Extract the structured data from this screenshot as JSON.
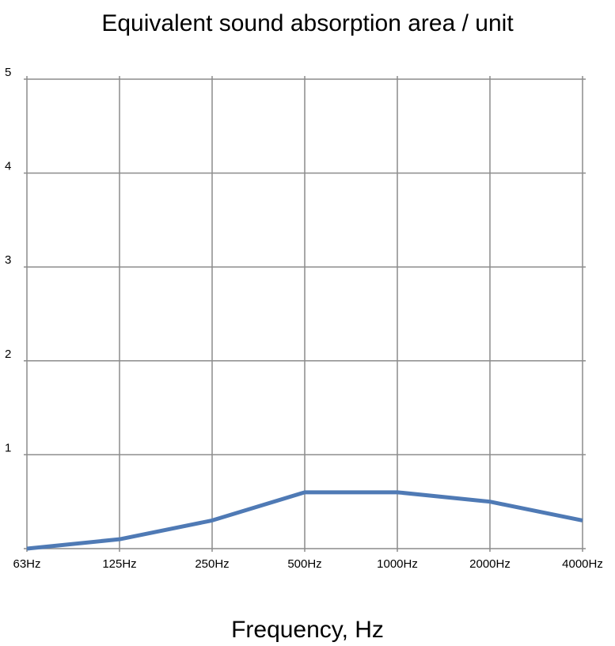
{
  "chart_data": {
    "type": "line",
    "title": "Equivalent sound absorption area / unit",
    "xlabel": "Frequency, Hz",
    "ylabel": "",
    "categories": [
      "63Hz",
      "125Hz",
      "250Hz",
      "500Hz",
      "1000Hz",
      "2000Hz",
      "4000Hz"
    ],
    "series": [
      {
        "values": [
          0.0,
          0.1,
          0.3,
          0.6,
          0.6,
          0.5,
          0.3
        ],
        "color": "#4f7ab5"
      }
    ],
    "ylim": [
      0,
      5
    ],
    "yticks": [
      "1",
      "2",
      "3",
      "4",
      "5"
    ],
    "grid": true,
    "legend": "none",
    "colors": {
      "grid": "#8c8c8c",
      "series": "#4f7ab5"
    }
  }
}
